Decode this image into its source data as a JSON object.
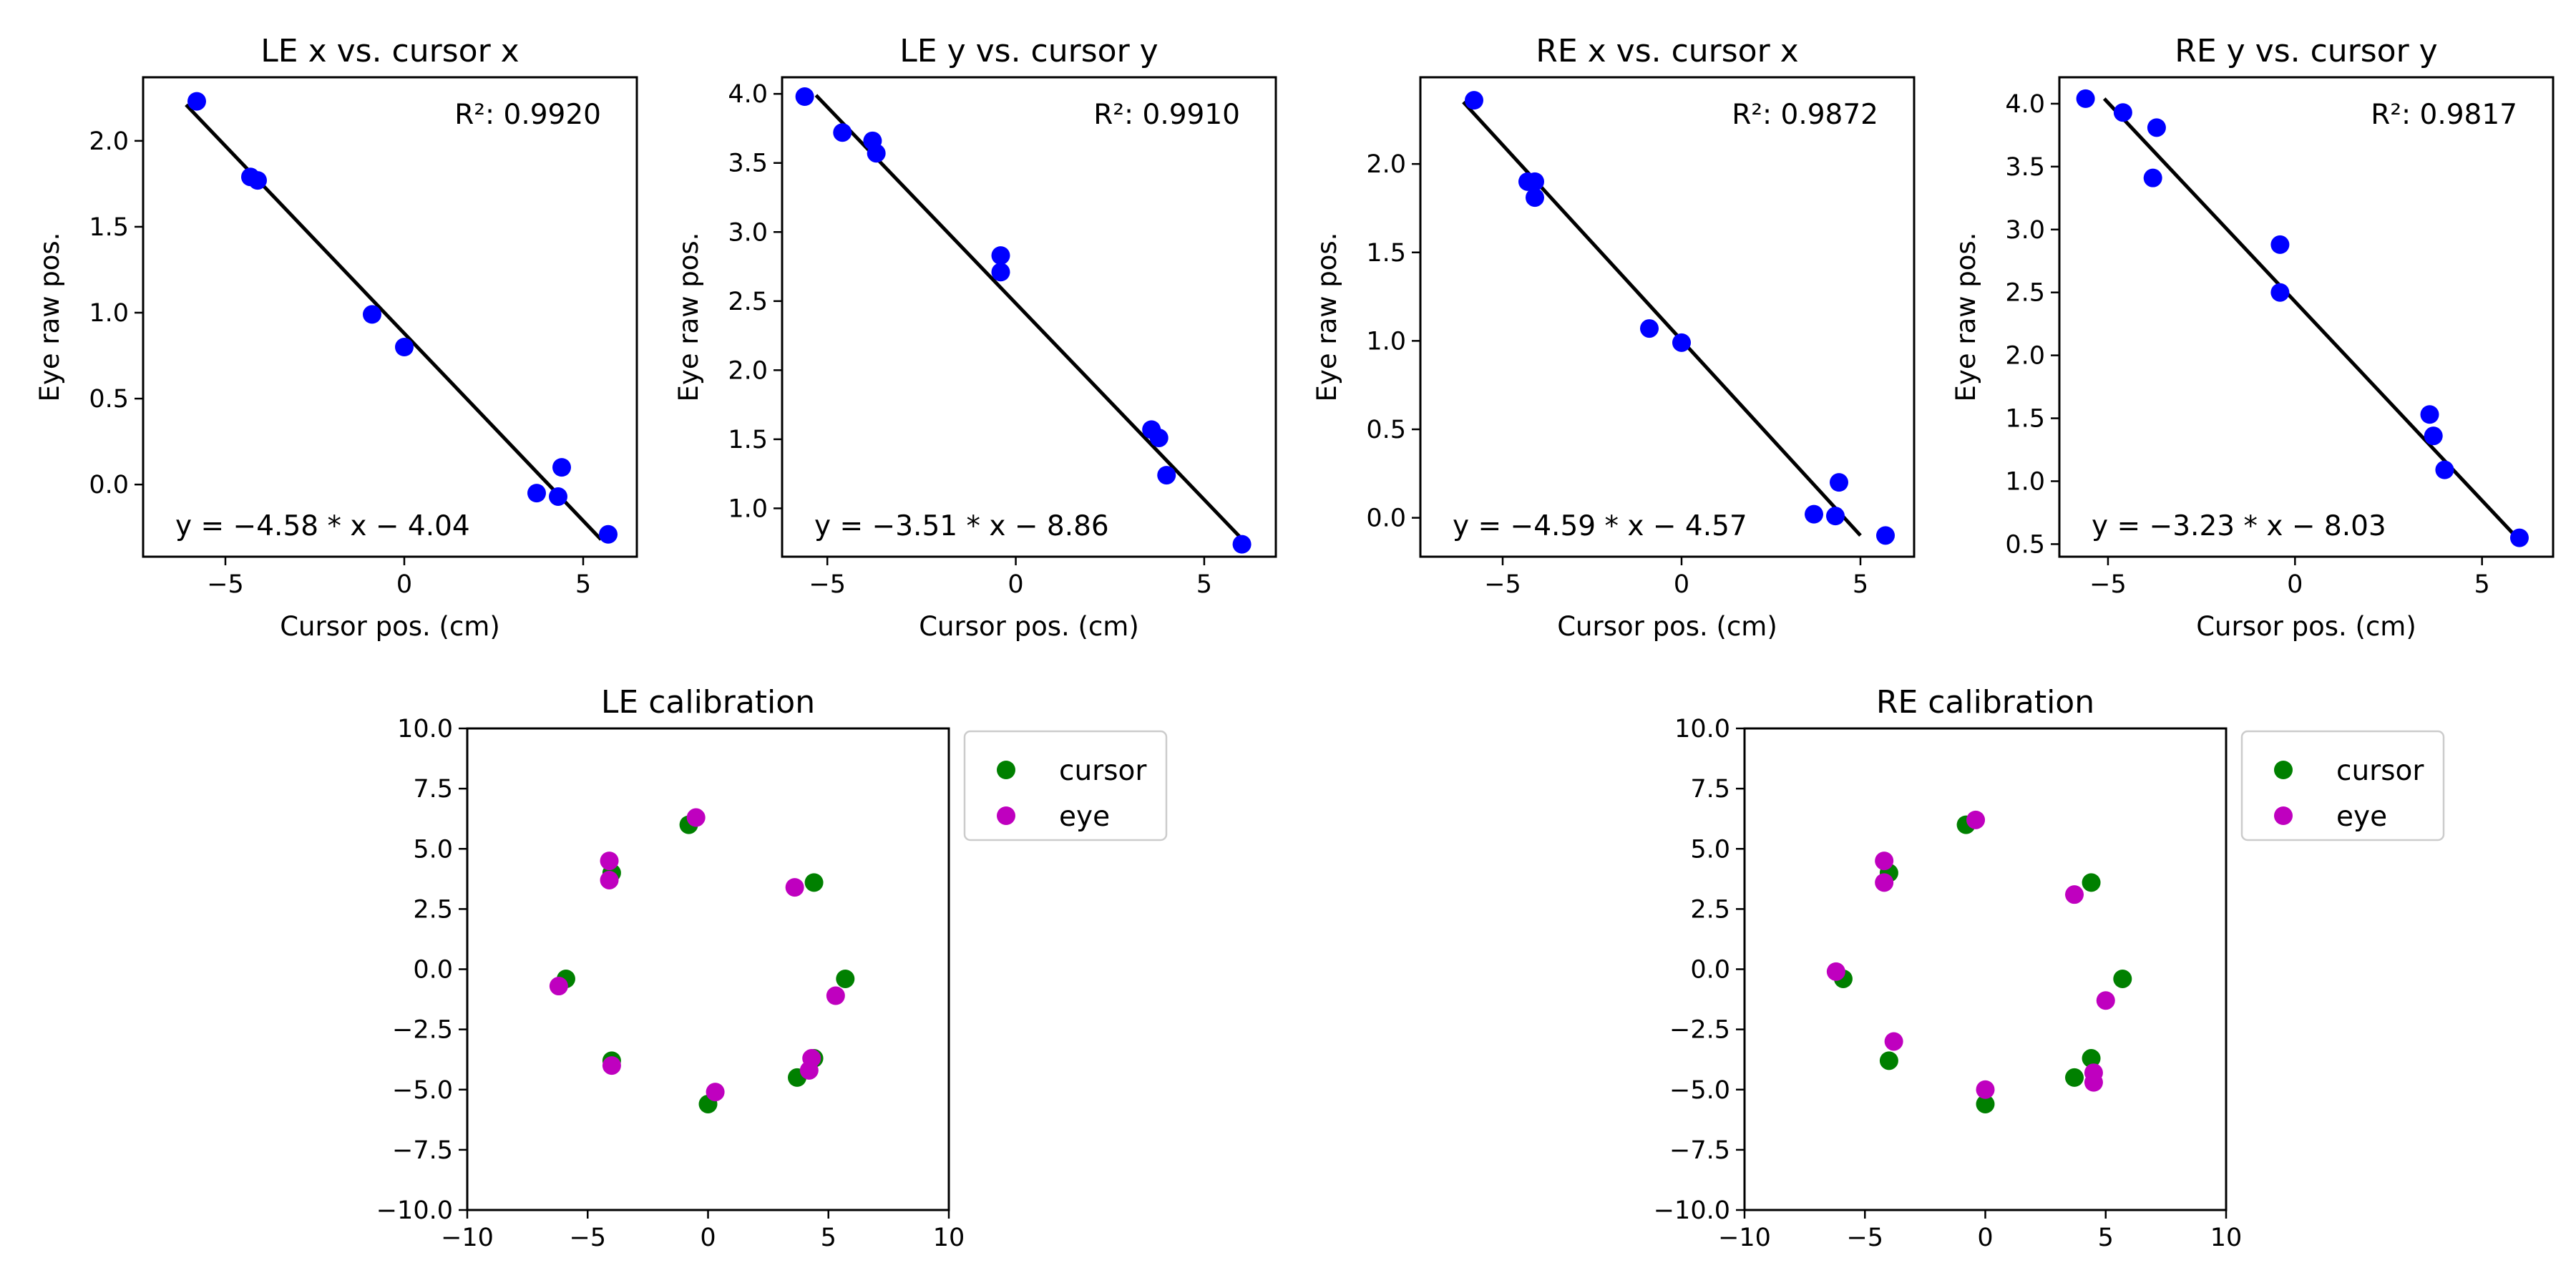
{
  "colors": {
    "points": "#0000ff",
    "fit_line": "#000000",
    "cursor": "#008000",
    "eye": "#bf00bf"
  },
  "chart_data": [
    {
      "type": "scatter",
      "title": "LE x vs. cursor x",
      "xlabel": "Cursor pos. (cm)",
      "ylabel": "Eye raw pos.",
      "xlim": [
        -7.3,
        6.5
      ],
      "ylim": [
        -0.42,
        2.37
      ],
      "xticks": [
        -5,
        0,
        5
      ],
      "xtick_labels": [
        "−5",
        "0",
        "5"
      ],
      "yticks": [
        0.0,
        0.5,
        1.0,
        1.5,
        2.0
      ],
      "ytick_labels": [
        "0.0",
        "0.5",
        "1.0",
        "1.5",
        "2.0"
      ],
      "points": {
        "x": [
          -5.8,
          -4.3,
          -4.1,
          -0.9,
          0.0,
          3.7,
          4.3,
          4.4,
          5.7
        ],
        "y": [
          2.23,
          1.79,
          1.77,
          0.99,
          0.8,
          -0.05,
          -0.07,
          0.1,
          -0.29
        ]
      },
      "fit_line": {
        "x": [
          -6.1,
          5.5
        ],
        "y": [
          2.21,
          -0.32
        ]
      },
      "r2_label": "R²: 0.9920",
      "equation_label": "y = −4.58 * x − 4.04"
    },
    {
      "type": "scatter",
      "title": "LE y vs. cursor y",
      "xlabel": "Cursor pos. (cm)",
      "ylabel": "Eye raw pos.",
      "xlim": [
        -6.2,
        6.9
      ],
      "ylim": [
        0.65,
        4.12
      ],
      "xticks": [
        -5,
        0,
        5
      ],
      "xtick_labels": [
        "−5",
        "0",
        "5"
      ],
      "yticks": [
        1.0,
        1.5,
        2.0,
        2.5,
        3.0,
        3.5,
        4.0
      ],
      "ytick_labels": [
        "1.0",
        "1.5",
        "2.0",
        "2.5",
        "3.0",
        "3.5",
        "4.0"
      ],
      "points": {
        "x": [
          -5.6,
          -4.6,
          -3.8,
          -3.7,
          -0.4,
          -0.4,
          3.6,
          3.8,
          4.0,
          6.0
        ],
        "y": [
          3.98,
          3.72,
          3.66,
          3.57,
          2.83,
          2.71,
          1.57,
          1.51,
          1.24,
          0.74
        ]
      },
      "fit_line": {
        "x": [
          -5.3,
          6.1
        ],
        "y": [
          3.99,
          0.75
        ]
      },
      "r2_label": "R²: 0.9910",
      "equation_label": "y = −3.51 * x − 8.86"
    },
    {
      "type": "scatter",
      "title": "RE x vs. cursor x",
      "xlabel": "Cursor pos. (cm)",
      "ylabel": "Eye raw pos.",
      "xlim": [
        -7.3,
        6.5
      ],
      "ylim": [
        -0.22,
        2.49
      ],
      "xticks": [
        -5,
        0,
        5
      ],
      "xtick_labels": [
        "−5",
        "0",
        "5"
      ],
      "yticks": [
        0.0,
        0.5,
        1.0,
        1.5,
        2.0
      ],
      "ytick_labels": [
        "0.0",
        "0.5",
        "1.0",
        "1.5",
        "2.0"
      ],
      "points": {
        "x": [
          -5.8,
          -4.3,
          -4.1,
          -4.1,
          -0.9,
          0.0,
          3.7,
          4.3,
          4.4,
          5.7
        ],
        "y": [
          2.36,
          1.9,
          1.9,
          1.81,
          1.07,
          0.99,
          0.02,
          0.01,
          0.2,
          -0.1
        ]
      },
      "fit_line": {
        "x": [
          -6.1,
          5.0
        ],
        "y": [
          2.35,
          -0.1
        ]
      },
      "r2_label": "R²: 0.9872",
      "equation_label": "y = −4.59 * x − 4.57"
    },
    {
      "type": "scatter",
      "title": "RE y vs. cursor y",
      "xlabel": "Cursor pos. (cm)",
      "ylabel": "Eye raw pos.",
      "xlim": [
        -6.3,
        6.9
      ],
      "ylim": [
        0.4,
        4.21
      ],
      "xticks": [
        -5,
        0,
        5
      ],
      "xtick_labels": [
        "−5",
        "0",
        "5"
      ],
      "yticks": [
        0.5,
        1.0,
        1.5,
        2.0,
        2.5,
        3.0,
        3.5,
        4.0
      ],
      "ytick_labels": [
        "0.5",
        "1.0",
        "1.5",
        "2.0",
        "2.5",
        "3.0",
        "3.5",
        "4.0"
      ],
      "points": {
        "x": [
          -5.6,
          -4.6,
          -3.7,
          -3.8,
          -0.4,
          -0.4,
          3.6,
          3.7,
          4.0,
          6.0
        ],
        "y": [
          4.04,
          3.93,
          3.81,
          3.41,
          2.88,
          2.5,
          1.53,
          1.36,
          1.09,
          0.55
        ]
      },
      "fit_line": {
        "x": [
          -5.1,
          6.0
        ],
        "y": [
          4.04,
          0.53
        ]
      },
      "r2_label": "R²: 0.9817",
      "equation_label": "y = −3.23 * x − 8.03"
    },
    {
      "type": "scatter",
      "title": "LE calibration",
      "xlim": [
        -10,
        10
      ],
      "ylim": [
        -10,
        10
      ],
      "xticks": [
        -10,
        -5,
        0,
        5,
        10
      ],
      "xtick_labels": [
        "−10",
        "−5",
        "0",
        "5",
        "10"
      ],
      "yticks": [
        -10,
        -7.5,
        -5,
        -2.5,
        0,
        2.5,
        5,
        7.5,
        10
      ],
      "ytick_labels": [
        "−10.0",
        "−7.5",
        "−5.0",
        "−2.5",
        "0.0",
        "2.5",
        "5.0",
        "7.5",
        "10.0"
      ],
      "legend": {
        "placement": "outside right, upper"
      },
      "series": [
        {
          "name": "cursor",
          "x": [
            -0.8,
            -4.0,
            4.4,
            -5.9,
            5.7,
            -4.0,
            4.4,
            3.7,
            0.0
          ],
          "y": [
            6.0,
            4.0,
            3.6,
            -0.4,
            -0.4,
            -3.8,
            -3.7,
            -4.5,
            -5.6
          ]
        },
        {
          "name": "eye",
          "x": [
            -0.5,
            -4.1,
            -4.1,
            3.6,
            -6.2,
            5.3,
            4.3,
            -4.0,
            4.2,
            0.3
          ],
          "y": [
            6.3,
            4.5,
            3.7,
            3.4,
            -0.7,
            -1.1,
            -3.7,
            -4.0,
            -4.2,
            -5.1
          ]
        }
      ]
    },
    {
      "type": "scatter",
      "title": "RE calibration",
      "xlim": [
        -10,
        10
      ],
      "ylim": [
        -10,
        10
      ],
      "xticks": [
        -10,
        -5,
        0,
        5,
        10
      ],
      "xtick_labels": [
        "−10",
        "−5",
        "0",
        "5",
        "10"
      ],
      "yticks": [
        -10,
        -7.5,
        -5,
        -2.5,
        0,
        2.5,
        5,
        7.5,
        10
      ],
      "ytick_labels": [
        "−10.0",
        "−7.5",
        "−5.0",
        "−2.5",
        "0.0",
        "2.5",
        "5.0",
        "7.5",
        "10.0"
      ],
      "legend": {
        "placement": "outside right, upper"
      },
      "series": [
        {
          "name": "cursor",
          "x": [
            -0.8,
            -4.0,
            4.4,
            -5.9,
            5.7,
            -4.0,
            4.4,
            3.7,
            0.0
          ],
          "y": [
            6.0,
            4.0,
            3.6,
            -0.4,
            -0.4,
            -3.8,
            -3.7,
            -4.5,
            -5.6
          ]
        },
        {
          "name": "eye",
          "x": [
            -0.4,
            -4.2,
            -4.2,
            3.7,
            -6.2,
            5.0,
            4.5,
            -3.8,
            4.5,
            0.0
          ],
          "y": [
            6.2,
            4.5,
            3.6,
            3.1,
            -0.1,
            -1.3,
            -4.3,
            -3.0,
            -4.7,
            -5.0
          ]
        }
      ]
    }
  ]
}
